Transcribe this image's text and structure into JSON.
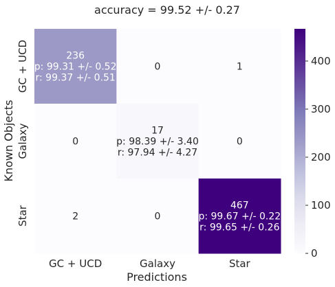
{
  "chart_data": {
    "type": "heatmap",
    "title": "accuracy = 99.52 +/- 0.27",
    "xlabel": "Predictions",
    "ylabel": "Known Objects",
    "x_categories": [
      "GC + UCD",
      "Galaxy",
      "Star"
    ],
    "y_categories": [
      "GC + UCD",
      "Galaxy",
      "Star"
    ],
    "values": [
      [
        236,
        0,
        1
      ],
      [
        0,
        17,
        0
      ],
      [
        2,
        0,
        467
      ]
    ],
    "cell_annotations": [
      [
        [
          "236",
          "p: 99.31 +/- 0.52",
          "r: 99.37 +/- 0.51"
        ],
        [
          "0"
        ],
        [
          "1"
        ]
      ],
      [
        [
          "0"
        ],
        [
          "17",
          "p: 98.39 +/- 3.40",
          "r: 97.94 +/- 4.27"
        ],
        [
          "0"
        ]
      ],
      [
        [
          "2"
        ],
        [
          "0"
        ],
        [
          "467",
          "p: 99.67 +/- 0.22",
          "r: 99.65 +/- 0.26"
        ]
      ]
    ],
    "colorbar": {
      "colormap": "Purples",
      "range": [
        0,
        467
      ],
      "ticks": [
        0,
        100,
        200,
        300,
        400
      ]
    },
    "colors": {
      "low": "#fcfbfd",
      "high": "#3f007d"
    },
    "grid": false
  }
}
